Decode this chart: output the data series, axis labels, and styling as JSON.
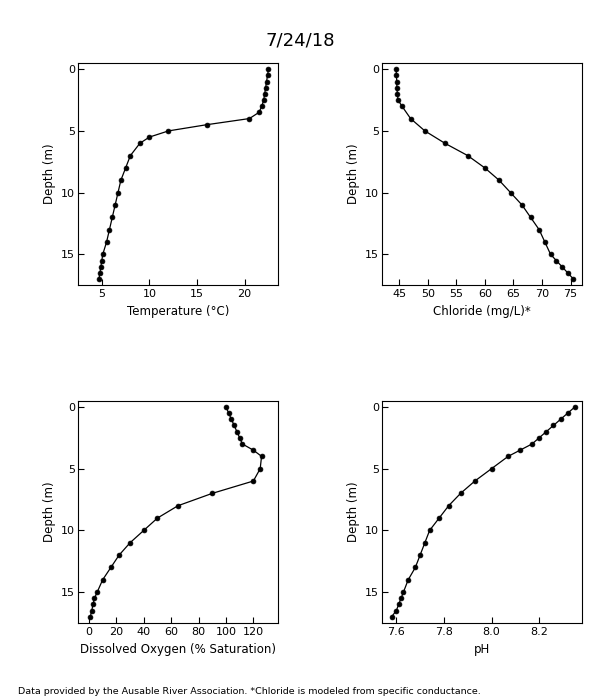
{
  "title": "7/24/18",
  "footnote": "Data provided by the Ausable River Association. *Chloride is modeled from specific conductance.",
  "temp_depth": [
    0,
    0.5,
    1,
    1.5,
    2,
    2.5,
    3,
    3.5,
    4,
    4.5,
    5,
    5.5,
    6,
    7,
    8,
    9,
    10,
    11,
    12,
    13,
    14,
    15,
    15.5,
    16,
    16.5,
    17
  ],
  "temp_vals": [
    22.5,
    22.4,
    22.3,
    22.2,
    22.1,
    22.0,
    21.8,
    21.5,
    20.5,
    16.0,
    12.0,
    10.0,
    9.0,
    8.0,
    7.5,
    7.0,
    6.7,
    6.4,
    6.1,
    5.8,
    5.5,
    5.1,
    5.0,
    4.9,
    4.8,
    4.7
  ],
  "chloride_depth": [
    0,
    0.5,
    1,
    1.5,
    2,
    2.5,
    3,
    4,
    5,
    6,
    7,
    8,
    9,
    10,
    11,
    12,
    13,
    14,
    15,
    15.5,
    16,
    16.5,
    17
  ],
  "chloride_vals": [
    44.5,
    44.5,
    44.6,
    44.6,
    44.7,
    44.8,
    45.5,
    47.0,
    49.5,
    53.0,
    57.0,
    60.0,
    62.5,
    64.5,
    66.5,
    68.0,
    69.5,
    70.5,
    71.5,
    72.5,
    73.5,
    74.5,
    75.5
  ],
  "do_depth": [
    0,
    0.5,
    1,
    1.5,
    2,
    2.5,
    3,
    3.5,
    4,
    5,
    6,
    7,
    8,
    9,
    10,
    11,
    12,
    13,
    14,
    15,
    15.5,
    16,
    16.5,
    17
  ],
  "do_vals": [
    100,
    102,
    104,
    106,
    108,
    110,
    112,
    120,
    126,
    125,
    120,
    90,
    65,
    50,
    40,
    30,
    22,
    16,
    10,
    6,
    4,
    3,
    2,
    1
  ],
  "ph_depth": [
    0,
    0.5,
    1,
    1.5,
    2,
    2.5,
    3,
    3.5,
    4,
    5,
    6,
    7,
    8,
    9,
    10,
    11,
    12,
    13,
    14,
    15,
    15.5,
    16,
    16.5,
    17
  ],
  "ph_vals": [
    8.35,
    8.32,
    8.29,
    8.26,
    8.23,
    8.2,
    8.17,
    8.12,
    8.07,
    8.0,
    7.93,
    7.87,
    7.82,
    7.78,
    7.74,
    7.72,
    7.7,
    7.68,
    7.65,
    7.63,
    7.62,
    7.61,
    7.6,
    7.58
  ],
  "depth_ylim": [
    17.5,
    -0.5
  ],
  "depth_ticks": [
    0,
    5,
    10,
    15
  ],
  "temp_xlim": [
    2.5,
    23.5
  ],
  "temp_xticks": [
    5,
    10,
    15,
    20
  ],
  "temp_xlabel": "Temperature (°C)",
  "chloride_xlim": [
    42,
    77
  ],
  "chloride_xticks": [
    45,
    50,
    55,
    60,
    65,
    70,
    75
  ],
  "chloride_xlabel": "Chloride (mg/L)*",
  "do_xlim": [
    -8,
    138
  ],
  "do_xticks": [
    0,
    20,
    40,
    60,
    80,
    100,
    120
  ],
  "do_xlabel": "Dissolved Oxygen (% Saturation)",
  "ph_xlim": [
    7.54,
    8.38
  ],
  "ph_xticks": [
    7.6,
    7.8,
    8.0,
    8.2
  ],
  "ph_xlabel": "pH",
  "ylabel": "Depth (m)"
}
